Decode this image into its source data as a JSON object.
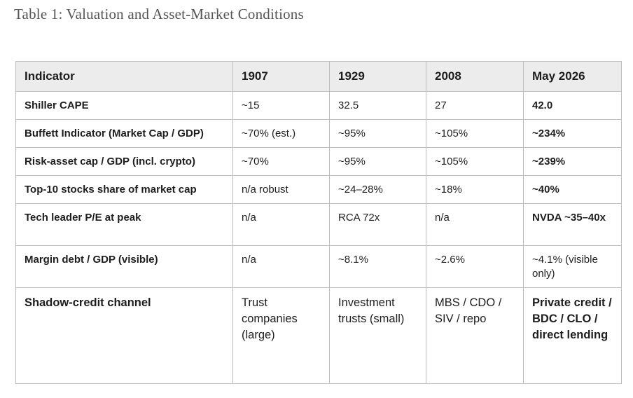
{
  "title": "Table 1: Valuation and Asset-Market Conditions",
  "table": {
    "headers": [
      "Indicator",
      "1907",
      "1929",
      "2008",
      "May 2026"
    ],
    "rows": [
      [
        "Shiller CAPE",
        "~15",
        "32.5",
        "27",
        "42.0"
      ],
      [
        "Buffett Indicator (Market Cap / GDP)",
        "~70% (est.)",
        "~95%",
        "~105%",
        "~234%"
      ],
      [
        "Risk-asset cap / GDP (incl. crypto)",
        "~70%",
        "~95%",
        "~105%",
        "~239%"
      ],
      [
        "Top-10 stocks share of market cap",
        "n/a robust",
        "~24–28%",
        "~18%",
        "~40%"
      ],
      [
        "Tech leader P/E at peak",
        "n/a",
        "RCA 72x",
        "n/a",
        "NVDA ~35–40x"
      ],
      [
        "Margin debt / GDP (visible)",
        "n/a",
        "~8.1%",
        "~2.6%",
        "~4.1% (visible only)"
      ],
      [
        "Shadow-credit channel",
        "Trust companies (large)",
        "Investment trusts (small)",
        "MBS / CDO / SIV / repo",
        "Private credit / BDC / CLO / direct lending"
      ]
    ]
  }
}
